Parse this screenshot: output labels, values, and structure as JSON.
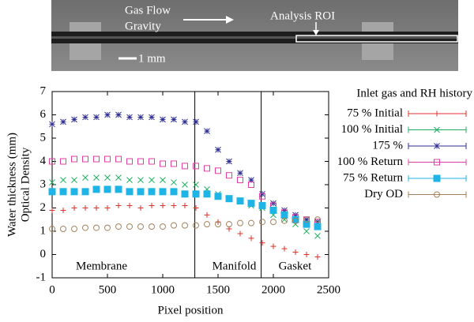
{
  "image": {
    "flow_label": "Gas Flow",
    "gravity_label": "Gravity",
    "roi_label": "Analysis ROI",
    "scale_label": "1 mm"
  },
  "chart_data": {
    "type": "scatter",
    "ylabel": [
      "Water thickness (mm)",
      "Optical Density"
    ],
    "xlabel": "Pixel position",
    "legend_title": "Inlet gas and RH history",
    "legend": "right",
    "xlim": [
      0,
      2500
    ],
    "xticks": [
      0,
      500,
      1000,
      1500,
      2000,
      2500
    ],
    "ylim": [
      -1,
      7
    ],
    "yticks": [
      -1,
      0,
      1,
      2,
      3,
      4,
      5,
      6,
      7
    ],
    "vlines": [
      1290,
      1890
    ],
    "regions": [
      "Membrane",
      "Manifold",
      "Gasket"
    ],
    "x": [
      0,
      100,
      200,
      300,
      400,
      500,
      600,
      700,
      800,
      900,
      1000,
      1100,
      1200,
      1300,
      1400,
      1500,
      1600,
      1700,
      1800,
      1900,
      2000,
      2100,
      2200,
      2300,
      2400
    ],
    "series": [
      {
        "name": "75 % Initial",
        "color": "#e0302a",
        "marker": "plus",
        "values": [
          1.9,
          1.9,
          2.0,
          2.0,
          2.0,
          2.0,
          2.1,
          2.1,
          2.0,
          2.1,
          2.1,
          2.1,
          2.1,
          2.0,
          1.7,
          1.4,
          1.1,
          0.9,
          0.7,
          0.5,
          0.35,
          0.25,
          0.1,
          0.0,
          -0.1
        ]
      },
      {
        "name": "100 % Initial",
        "color": "#1fae5f",
        "marker": "cross",
        "values": [
          3.1,
          3.2,
          3.2,
          3.3,
          3.3,
          3.3,
          3.3,
          3.2,
          3.2,
          3.2,
          3.2,
          3.1,
          3.0,
          3.0,
          2.8,
          2.6,
          2.4,
          2.3,
          2.1,
          2.0,
          1.7,
          1.5,
          1.3,
          1.0,
          0.8
        ]
      },
      {
        "name": "175 %",
        "color": "#2e2e96",
        "marker": "star",
        "values": [
          5.6,
          5.7,
          5.8,
          5.9,
          5.9,
          6.0,
          6.0,
          5.9,
          5.9,
          5.9,
          5.8,
          5.8,
          5.7,
          5.7,
          5.3,
          4.5,
          4.0,
          3.5,
          3.2,
          2.6,
          2.2,
          1.9,
          1.7,
          1.5,
          1.4
        ]
      },
      {
        "name": "100 % Return",
        "color": "#e03fa3",
        "marker": "square",
        "values": [
          4.0,
          4.0,
          4.1,
          4.1,
          4.1,
          4.1,
          4.1,
          4.0,
          4.0,
          4.0,
          3.9,
          3.9,
          3.8,
          3.8,
          3.7,
          3.6,
          3.4,
          3.2,
          3.0,
          2.5,
          2.1,
          1.8,
          1.6,
          1.5,
          1.4
        ]
      },
      {
        "name": "75 % Return",
        "color": "#1eb4e6",
        "marker": "filled-square",
        "values": [
          2.7,
          2.7,
          2.7,
          2.7,
          2.8,
          2.8,
          2.8,
          2.7,
          2.7,
          2.7,
          2.7,
          2.7,
          2.6,
          2.6,
          2.6,
          2.5,
          2.4,
          2.3,
          2.2,
          2.1,
          1.9,
          1.7,
          1.5,
          1.3,
          1.2
        ]
      },
      {
        "name": "Dry OD",
        "color": "#a0805a",
        "marker": "circle",
        "values": [
          1.1,
          1.1,
          1.1,
          1.15,
          1.15,
          1.15,
          1.2,
          1.2,
          1.2,
          1.2,
          1.2,
          1.25,
          1.25,
          1.25,
          1.3,
          1.3,
          1.3,
          1.35,
          1.35,
          1.4,
          1.4,
          1.45,
          1.45,
          1.5,
          1.5
        ]
      }
    ]
  }
}
